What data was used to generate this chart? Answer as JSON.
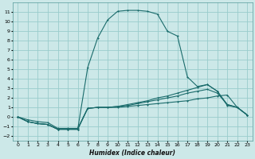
{
  "xlabel": "Humidex (Indice chaleur)",
  "background_color": "#cce8e8",
  "grid_color": "#99cccc",
  "line_color": "#1a6b6b",
  "xlim": [
    -0.5,
    23.5
  ],
  "ylim": [
    -2.5,
    12.0
  ],
  "xticks": [
    0,
    1,
    2,
    3,
    4,
    5,
    6,
    7,
    8,
    9,
    10,
    11,
    12,
    13,
    14,
    15,
    16,
    17,
    18,
    19,
    20,
    21,
    22,
    23
  ],
  "yticks": [
    -2,
    -1,
    0,
    1,
    2,
    3,
    4,
    5,
    6,
    7,
    8,
    9,
    10,
    11
  ],
  "c1y": [
    0,
    -0.5,
    -0.7,
    -0.8,
    -1.3,
    -1.3,
    -1.3,
    0.9,
    1.0,
    1.0,
    1.0,
    1.1,
    1.2,
    1.3,
    1.4,
    1.5,
    1.6,
    1.7,
    1.9,
    2.0,
    2.2,
    2.3,
    1.0,
    0.2
  ],
  "c2y": [
    0,
    -0.5,
    -0.7,
    -0.8,
    -1.3,
    -1.3,
    -1.3,
    0.9,
    1.0,
    1.0,
    1.1,
    1.2,
    1.4,
    1.6,
    1.8,
    2.0,
    2.2,
    2.5,
    2.7,
    2.9,
    2.5,
    1.3,
    1.0,
    0.2
  ],
  "c3y": [
    0,
    -0.5,
    -0.7,
    -0.8,
    -1.3,
    -1.3,
    -1.3,
    5.2,
    8.3,
    10.2,
    11.1,
    11.2,
    11.2,
    11.1,
    10.8,
    9.0,
    8.5,
    4.2,
    3.2,
    3.4,
    2.7,
    1.2,
    1.0,
    0.2
  ],
  "c4y": [
    0,
    -0.3,
    -0.5,
    -0.6,
    -1.2,
    -1.2,
    -1.2,
    0.9,
    1.0,
    1.0,
    1.1,
    1.3,
    1.5,
    1.7,
    2.0,
    2.2,
    2.5,
    2.8,
    3.1,
    3.4,
    2.7,
    1.3,
    1.0,
    0.2
  ]
}
